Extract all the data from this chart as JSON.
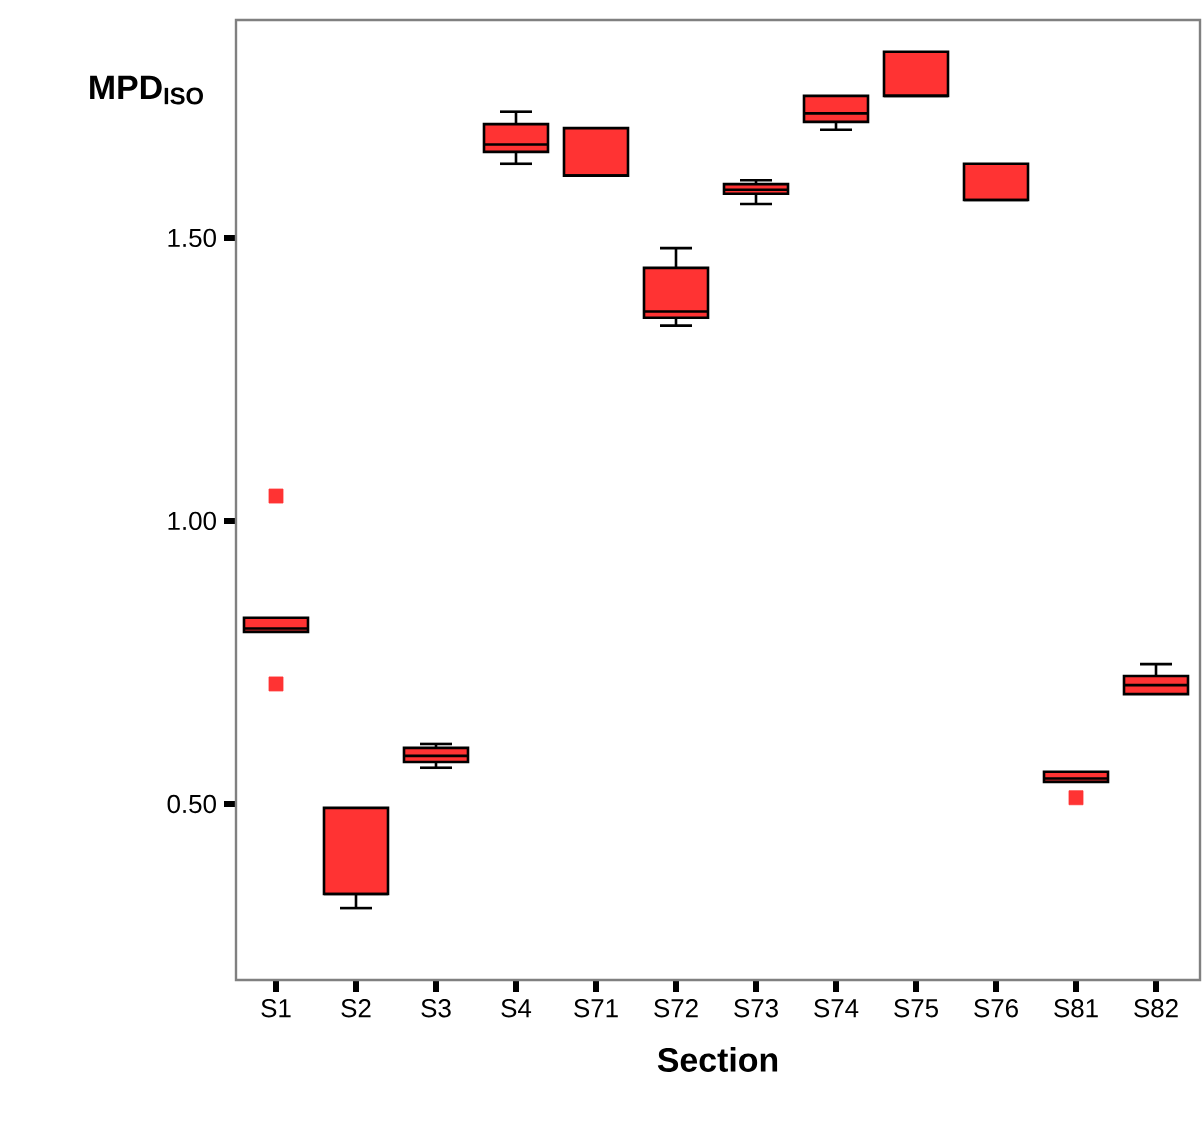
{
  "chart_data": {
    "type": "box",
    "xlabel": "Section",
    "ylabel": "MPD$_{ISO}$",
    "categories": [
      "S1",
      "S2",
      "S3",
      "S4",
      "S71",
      "S72",
      "S73",
      "S74",
      "S75",
      "S76",
      "S81",
      "S82"
    ],
    "color": "#ff3333",
    "boxes": [
      {
        "low": 0.804,
        "q1": 0.804,
        "median": 0.81,
        "q3": 0.829,
        "high": 0.829,
        "outliers": [
          1.044,
          0.712
        ]
      },
      {
        "low": 0.316,
        "q1": 0.341,
        "median": 0.341,
        "q3": 0.493,
        "high": 0.493
      },
      {
        "low": 0.564,
        "q1": 0.574,
        "median": 0.585,
        "q3": 0.599,
        "high": 0.606
      },
      {
        "low": 1.631,
        "q1": 1.652,
        "median": 1.665,
        "q3": 1.701,
        "high": 1.723
      },
      {
        "low": 1.61,
        "q1": 1.61,
        "median": 1.61,
        "q3": 1.694,
        "high": 1.694
      },
      {
        "low": 1.345,
        "q1": 1.359,
        "median": 1.37,
        "q3": 1.447,
        "high": 1.482
      },
      {
        "low": 1.56,
        "q1": 1.578,
        "median": 1.585,
        "q3": 1.595,
        "high": 1.602
      },
      {
        "low": 1.691,
        "q1": 1.705,
        "median": 1.72,
        "q3": 1.751,
        "high": 1.751
      },
      {
        "low": 1.751,
        "q1": 1.751,
        "median": 1.751,
        "q3": 1.829,
        "high": 1.829
      },
      {
        "low": 1.567,
        "q1": 1.567,
        "median": 1.567,
        "q3": 1.631,
        "high": 1.631
      },
      {
        "low": 0.539,
        "q1": 0.539,
        "median": 0.545,
        "q3": 0.557,
        "high": 0.557,
        "outliers": [
          0.511
        ]
      },
      {
        "low": 0.694,
        "q1": 0.694,
        "median": 0.71,
        "q3": 0.726,
        "high": 0.747
      }
    ],
    "ylim": [
      0.189,
      1.885
    ],
    "yticks": [
      {
        "value": 0.5,
        "label": "0.50"
      },
      {
        "value": 1.0,
        "label": "1.00"
      },
      {
        "value": 1.5,
        "label": "1.50"
      }
    ],
    "grid": false
  }
}
